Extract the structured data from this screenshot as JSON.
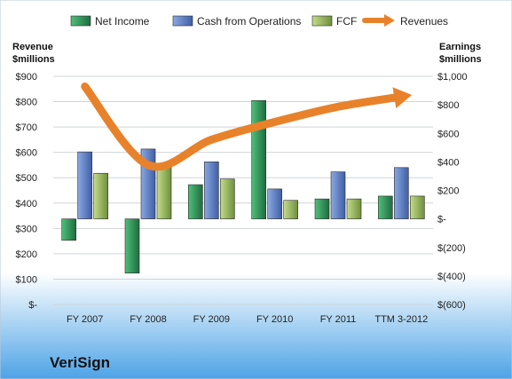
{
  "chart_data": {
    "type": "bar",
    "title": "",
    "company": "VeriSign",
    "categories": [
      "FY 2007",
      "FY 2008",
      "FY 2009",
      "FY 2010",
      "FY 2011",
      "TTM 3-2012"
    ],
    "left_axis": {
      "label_line1": "Revenue",
      "label_line2": "$millions",
      "ylim": [
        0,
        900
      ],
      "ticks": [
        0,
        100,
        200,
        300,
        400,
        500,
        600,
        700,
        800,
        900
      ],
      "tick_labels": [
        "$-",
        "$100",
        "$200",
        "$300",
        "$400",
        "$500",
        "$600",
        "$700",
        "$800",
        "$900"
      ]
    },
    "right_axis": {
      "label_line1": "Earnings",
      "label_line2": "$millions",
      "ylim": [
        -600,
        1000
      ],
      "ticks": [
        -600,
        -400,
        -200,
        0,
        200,
        400,
        600,
        800,
        1000
      ],
      "tick_labels": [
        "$(600)",
        "$(400)",
        "$(200)",
        "$-",
        "$200",
        "$400",
        "$600",
        "$800",
        "$1,000"
      ]
    },
    "series": [
      {
        "name": "Net Income",
        "axis": "right",
        "kind": "bar",
        "color": "#2e8b57",
        "values": [
          -150,
          -380,
          240,
          830,
          140,
          160
        ]
      },
      {
        "name": "Cash from Operations",
        "axis": "right",
        "kind": "bar",
        "color": "#5b7fc4",
        "values": [
          470,
          490,
          400,
          210,
          330,
          360
        ]
      },
      {
        "name": "FCF",
        "axis": "right",
        "kind": "bar",
        "color": "#9bbb59",
        "values": [
          320,
          370,
          280,
          130,
          140,
          160
        ]
      },
      {
        "name": "Revenues",
        "axis": "left",
        "kind": "line",
        "color": "#e8822a",
        "values": [
          860,
          550,
          650,
          720,
          780,
          820
        ]
      }
    ],
    "grid": true,
    "legend_position": "top"
  }
}
